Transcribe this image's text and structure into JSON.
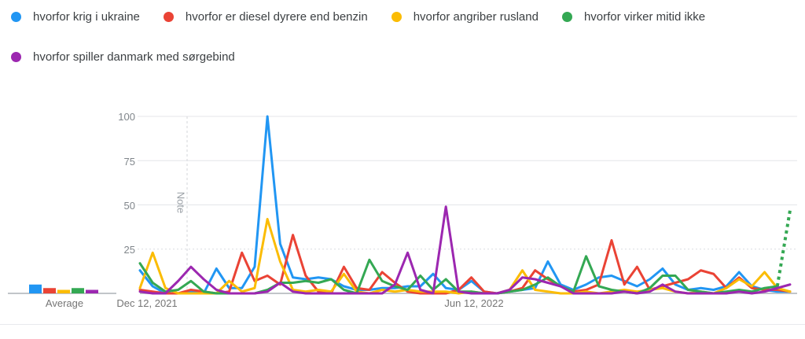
{
  "chart_data": {
    "type": "line",
    "title": "",
    "ylim": [
      0,
      100
    ],
    "y_gridlines": [
      25,
      50,
      75,
      100
    ],
    "y_tick_labels": [
      "100",
      "75",
      "50",
      "25"
    ],
    "x_tick_labels": [
      "Dec 12, 2021",
      "Jun 12, 2022"
    ],
    "average_label": "Average",
    "note_label": "Note",
    "legend_position": "top",
    "grid": "horizontal-only",
    "series": [
      {
        "name": "hvorfor krig i ukraine",
        "color": "#2196F3",
        "average": 5,
        "values": [
          13,
          4,
          0,
          0,
          1,
          0,
          14,
          3,
          3,
          15,
          100,
          28,
          9,
          8,
          9,
          8,
          4,
          2,
          2,
          3,
          3,
          4,
          4,
          11,
          3,
          2,
          7,
          1,
          0,
          1,
          2,
          3,
          18,
          5,
          2,
          5,
          9,
          10,
          7,
          4,
          8,
          14,
          5,
          2,
          3,
          2,
          4,
          12,
          4,
          2,
          1,
          1
        ]
      },
      {
        "name": "hvorfor er diesel dyrere end benzin",
        "color": "#EA4335",
        "average": 3,
        "values": [
          2,
          1,
          0,
          0,
          2,
          1,
          0,
          1,
          23,
          7,
          10,
          5,
          33,
          10,
          1,
          0,
          15,
          3,
          2,
          12,
          6,
          1,
          0,
          0,
          0,
          2,
          9,
          1,
          0,
          1,
          3,
          13,
          8,
          4,
          1,
          2,
          5,
          30,
          5,
          15,
          2,
          4,
          6,
          8,
          13,
          11,
          3,
          9,
          3,
          2,
          2,
          1
        ]
      },
      {
        "name": "hvorfor angriber rusland",
        "color": "#FBBC04",
        "average": 2,
        "values": [
          3,
          23,
          3,
          0,
          0,
          0,
          0,
          7,
          1,
          3,
          42,
          18,
          2,
          1,
          2,
          1,
          11,
          1,
          0,
          2,
          1,
          2,
          1,
          1,
          1,
          0,
          1,
          0,
          0,
          2,
          13,
          2,
          1,
          0,
          0,
          1,
          0,
          1,
          2,
          1,
          2,
          3,
          1,
          0,
          1,
          0,
          3,
          8,
          4,
          12,
          3,
          1
        ]
      },
      {
        "name": "hvorfor virker mitid ikke",
        "color": "#34A853",
        "average": 3,
        "last_segment_dotted": true,
        "values": [
          17,
          6,
          1,
          2,
          7,
          1,
          0,
          0,
          0,
          0,
          2,
          6,
          6,
          7,
          6,
          8,
          2,
          0,
          19,
          7,
          4,
          2,
          10,
          2,
          8,
          1,
          1,
          0,
          0,
          1,
          2,
          5,
          9,
          4,
          1,
          21,
          4,
          2,
          1,
          0,
          3,
          10,
          10,
          2,
          1,
          0,
          1,
          2,
          1,
          3,
          4,
          47
        ]
      },
      {
        "name": "hvorfor spiller danmark med sørgebind",
        "color": "#9C27B0",
        "average": 2,
        "values": [
          1,
          0,
          0,
          7,
          15,
          8,
          2,
          0,
          0,
          0,
          1,
          6,
          1,
          0,
          0,
          0,
          0,
          0,
          0,
          0,
          5,
          23,
          2,
          0,
          49,
          1,
          0,
          0,
          0,
          2,
          9,
          8,
          6,
          4,
          0,
          0,
          0,
          0,
          1,
          0,
          1,
          5,
          1,
          0,
          0,
          0,
          0,
          1,
          0,
          1,
          3,
          5
        ]
      }
    ]
  }
}
